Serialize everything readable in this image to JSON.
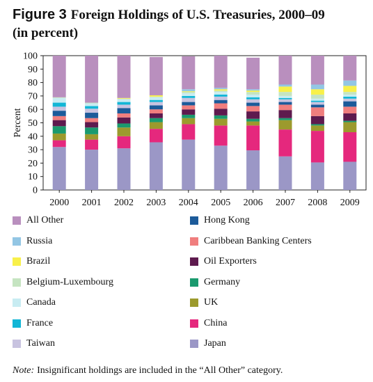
{
  "title": {
    "figure_label": "Figure 3",
    "text": "Foreign Holdings of U.S. Treasuries, 2000–09",
    "subtitle": "(in percent)"
  },
  "note": {
    "label": "Note:",
    "text": "Insignificant holdings are included in the “All Other” category."
  },
  "chart_data": {
    "type": "bar",
    "stacked": true,
    "ylabel": "Percent",
    "xlabel": "",
    "ylim": [
      0,
      100
    ],
    "yticks": [
      0,
      10,
      20,
      30,
      40,
      50,
      60,
      70,
      80,
      90,
      100
    ],
    "grid": false,
    "legend_position": "bottom",
    "categories": [
      "2000",
      "2001",
      "2002",
      "2003",
      "2004",
      "2005",
      "2006",
      "2007",
      "2008",
      "2009"
    ],
    "series": [
      {
        "name": "Japan",
        "color": "#9b97c6",
        "values": [
          32,
          30,
          31,
          35.5,
          37.5,
          33,
          29.5,
          25,
          20.5,
          21
        ]
      },
      {
        "name": "China",
        "color": "#e5287d",
        "values": [
          5,
          7.5,
          9,
          10,
          11.5,
          15,
          18.5,
          20,
          23.5,
          22
        ]
      },
      {
        "name": "UK",
        "color": "#9c9a2d",
        "values": [
          5,
          4,
          6.5,
          5,
          4.5,
          5,
          3,
          7,
          4,
          7.5
        ]
      },
      {
        "name": "Germany",
        "color": "#1a9a6e",
        "values": [
          5.5,
          5,
          3,
          3,
          2.5,
          2.5,
          2,
          1.5,
          1,
          1
        ]
      },
      {
        "name": "Oil Exporters",
        "color": "#5e1a4e",
        "values": [
          4.5,
          4,
          4.5,
          3.5,
          4,
          5,
          5.5,
          6,
          6,
          5.5
        ]
      },
      {
        "name": "Caribbean Banking Centers",
        "color": "#f07e7e",
        "values": [
          3,
          3,
          3,
          3,
          3,
          4,
          4,
          4,
          6.5,
          5
        ]
      },
      {
        "name": "Hong Kong",
        "color": "#1c5b9a",
        "values": [
          4,
          4,
          4,
          3,
          2.5,
          2.5,
          2.5,
          2,
          2,
          4
        ]
      },
      {
        "name": "Taiwan",
        "color": "#c8c3e0",
        "values": [
          3,
          3,
          2.5,
          2.5,
          3,
          2.5,
          2.5,
          2,
          2,
          2
        ]
      },
      {
        "name": "France",
        "color": "#12b6d6",
        "values": [
          3,
          2,
          2,
          1.5,
          1.5,
          1.5,
          1.5,
          1,
          1,
          1.5
        ]
      },
      {
        "name": "Canada",
        "color": "#c8ecf2",
        "values": [
          3.5,
          2,
          2,
          2,
          2,
          2,
          2,
          1.5,
          1.5,
          1.5
        ]
      },
      {
        "name": "Belgium-Luxembourg",
        "color": "#c5e4c1",
        "values": [
          0.5,
          0.5,
          0.5,
          0.5,
          1,
          1,
          2,
          3,
          3,
          2
        ]
      },
      {
        "name": "Brazil",
        "color": "#f8f04a",
        "values": [
          0,
          0,
          0.5,
          1,
          0.5,
          1,
          1,
          4,
          4,
          4.5
        ]
      },
      {
        "name": "Russia",
        "color": "#93c6e4",
        "values": [
          0,
          0,
          0,
          0,
          1.5,
          1,
          1,
          1.5,
          3.5,
          4
        ]
      },
      {
        "name": "All Other",
        "color": "#b98fbe",
        "values": [
          31,
          35,
          31.5,
          28.5,
          24.5,
          24,
          23.5,
          21.5,
          21.5,
          18.5
        ]
      }
    ]
  },
  "legend": {
    "left": [
      "All Other",
      "Russia",
      "Brazil",
      "Belgium-Luxembourg",
      "Canada",
      "France",
      "Taiwan"
    ],
    "right": [
      "Hong Kong",
      "Caribbean Banking Centers",
      "Oil Exporters",
      "Germany",
      "UK",
      "China",
      "Japan"
    ]
  }
}
